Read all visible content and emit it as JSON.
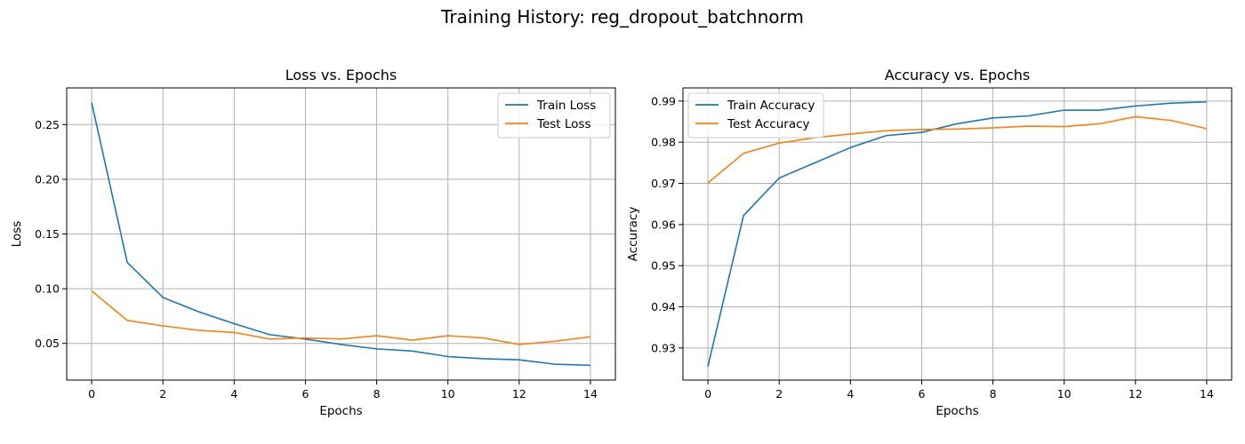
{
  "figure_title": "Training History: reg_dropout_batchnorm",
  "chart_data": [
    {
      "type": "line",
      "title": "Loss vs. Epochs",
      "xlabel": "Epochs",
      "ylabel": "Loss",
      "x": [
        0,
        1,
        2,
        3,
        4,
        5,
        6,
        7,
        8,
        9,
        10,
        11,
        12,
        13,
        14
      ],
      "xlim": [
        -0.7,
        14.7
      ],
      "ylim": [
        0.0165,
        0.2835
      ],
      "xticks": [
        0,
        2,
        4,
        6,
        8,
        10,
        12,
        14
      ],
      "yticks": [
        0.05,
        0.1,
        0.15,
        0.2,
        0.25
      ],
      "ytick_decimals": 2,
      "grid": true,
      "legend": "upper-right",
      "series": [
        {
          "name": "Train Loss",
          "color": "#1f77b4",
          "values": [
            0.27,
            0.124,
            0.092,
            0.079,
            0.068,
            0.058,
            0.054,
            0.049,
            0.045,
            0.043,
            0.038,
            0.036,
            0.035,
            0.031,
            0.03
          ]
        },
        {
          "name": "Test Loss",
          "color": "#ff7f0e",
          "values": [
            0.098,
            0.071,
            0.066,
            0.062,
            0.06,
            0.054,
            0.055,
            0.054,
            0.057,
            0.053,
            0.057,
            0.055,
            0.049,
            0.052,
            0.056
          ]
        }
      ]
    },
    {
      "type": "line",
      "title": "Accuracy vs. Epochs",
      "xlabel": "Epochs",
      "ylabel": "Accuracy",
      "x": [
        0,
        1,
        2,
        3,
        4,
        5,
        6,
        7,
        8,
        9,
        10,
        11,
        12,
        13,
        14
      ],
      "xlim": [
        -0.7,
        14.7
      ],
      "ylim": [
        0.9222,
        0.9932
      ],
      "xticks": [
        0,
        2,
        4,
        6,
        8,
        10,
        12,
        14
      ],
      "yticks": [
        0.93,
        0.94,
        0.95,
        0.96,
        0.97,
        0.98,
        0.99
      ],
      "ytick_decimals": 2,
      "grid": true,
      "legend": "upper-left",
      "series": [
        {
          "name": "Train Accuracy",
          "color": "#1f77b4",
          "values": [
            0.9255,
            0.9622,
            0.9713,
            0.975,
            0.9787,
            0.9816,
            0.9824,
            0.9845,
            0.9859,
            0.9864,
            0.9878,
            0.9878,
            0.9888,
            0.9895,
            0.9898
          ]
        },
        {
          "name": "Test Accuracy",
          "color": "#ff7f0e",
          "values": [
            0.9701,
            0.9773,
            0.9798,
            0.9811,
            0.982,
            0.9828,
            0.9831,
            0.9832,
            0.9835,
            0.9839,
            0.9838,
            0.9845,
            0.9862,
            0.9853,
            0.9833
          ]
        }
      ]
    }
  ]
}
